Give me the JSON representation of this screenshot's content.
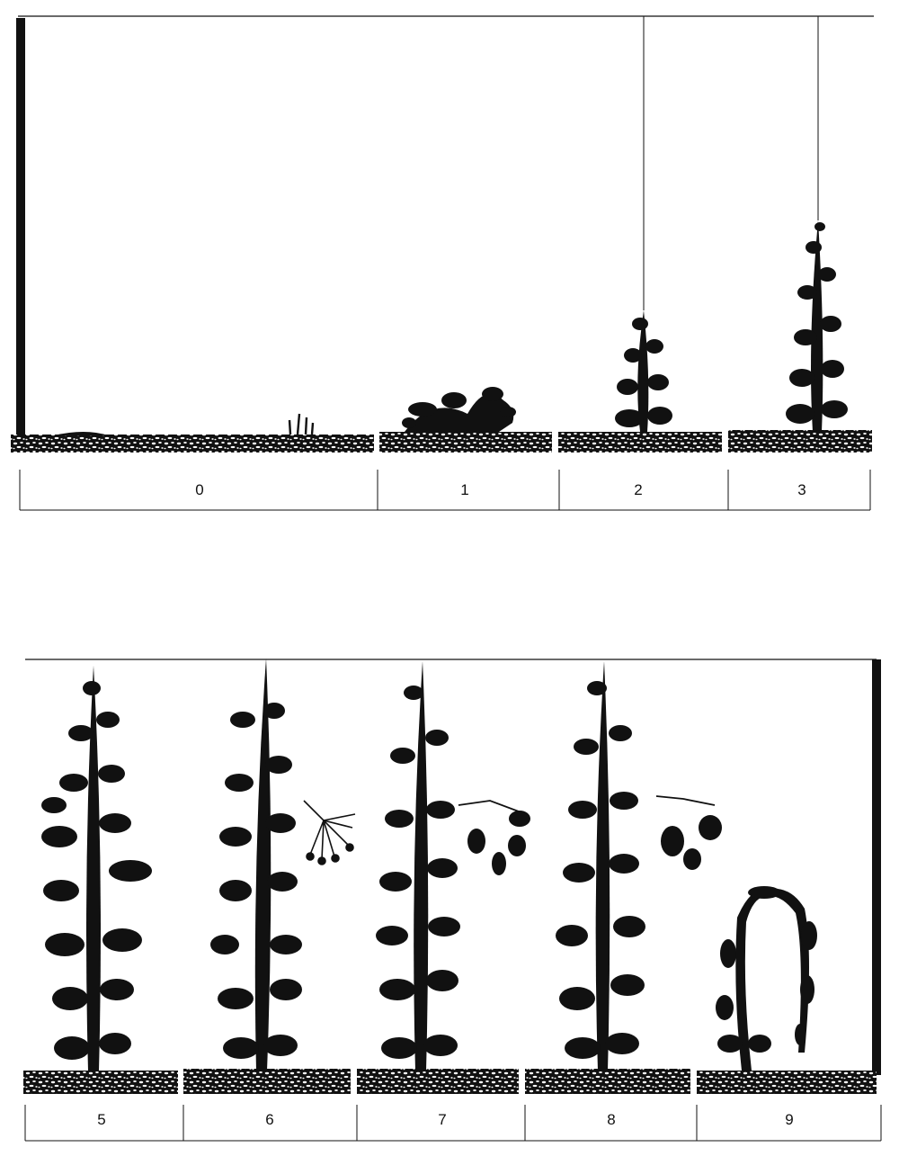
{
  "figure": {
    "subject": "Hop plant growth stages",
    "top_row": {
      "stages": [
        {
          "code": "0",
          "plant": "none"
        },
        {
          "code": "1",
          "plant": "shoots"
        },
        {
          "code": "2",
          "plant": "short-climbing"
        },
        {
          "code": "3",
          "plant": "climbing"
        }
      ]
    },
    "bottom_row": {
      "stages": [
        {
          "code": "5",
          "plant": "full-foliage"
        },
        {
          "code": "6",
          "plant": "flowering",
          "detail": "flower-detail"
        },
        {
          "code": "7",
          "plant": "cone-forming",
          "detail": "cone-detail"
        },
        {
          "code": "8",
          "plant": "ripe-cones",
          "detail": "ripe-cone-detail"
        },
        {
          "code": "9",
          "plant": "senescent"
        }
      ]
    }
  }
}
